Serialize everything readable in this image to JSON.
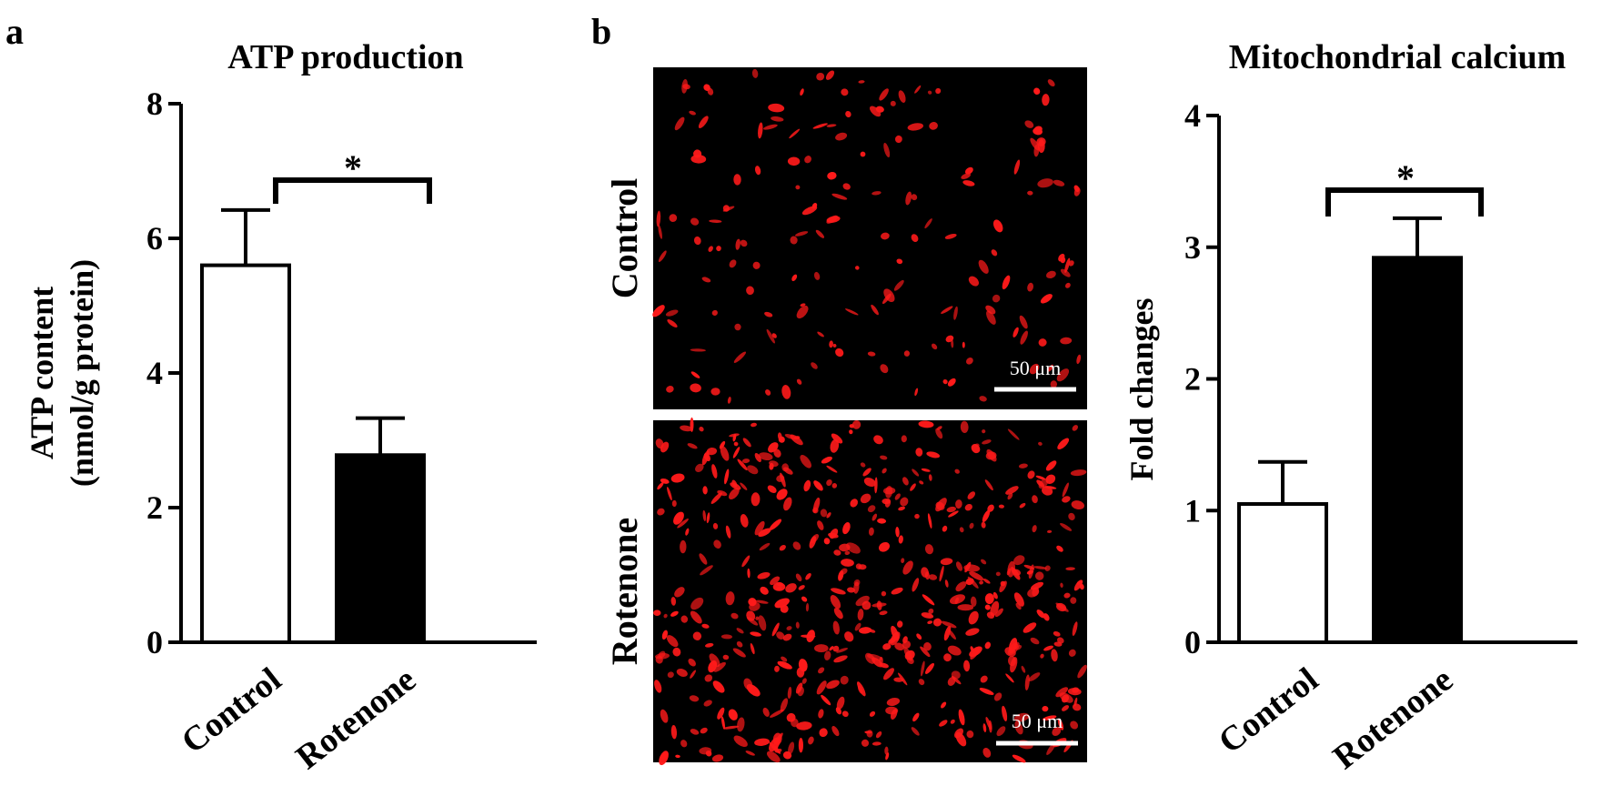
{
  "panels": {
    "a": "a",
    "b": "b"
  },
  "chart_data": [
    {
      "type": "bar",
      "title": "ATP production",
      "ylabel": [
        "ATP content",
        "(nmol/g  protein)"
      ],
      "xlabel": "",
      "categories": [
        "Control",
        "Rotenone"
      ],
      "values": [
        5.6,
        2.78
      ],
      "errors": [
        0.82,
        0.55
      ],
      "bar_colors": [
        "#ffffff",
        "#000000"
      ],
      "ylim": [
        0,
        8
      ],
      "yticks": [
        0,
        2,
        4,
        6,
        8
      ],
      "significance": "*",
      "grid": false
    },
    {
      "type": "bar",
      "title": "Mitochondrial  calcium",
      "ylabel": [
        "Fold changes"
      ],
      "xlabel": "",
      "categories": [
        "Control",
        "Rotenone"
      ],
      "values": [
        1.05,
        2.92
      ],
      "errors": [
        0.32,
        0.3
      ],
      "bar_colors": [
        "#ffffff",
        "#000000"
      ],
      "ylim": [
        0,
        4
      ],
      "yticks": [
        0,
        1,
        2,
        3,
        4
      ],
      "significance": "*",
      "grid": false
    }
  ],
  "micrographs": {
    "rows": [
      {
        "label": "Control",
        "scale_bar": "50 μm"
      },
      {
        "label": "Rotenone",
        "scale_bar": "50 μm"
      }
    ],
    "stain_color": "#ff1a1a"
  }
}
